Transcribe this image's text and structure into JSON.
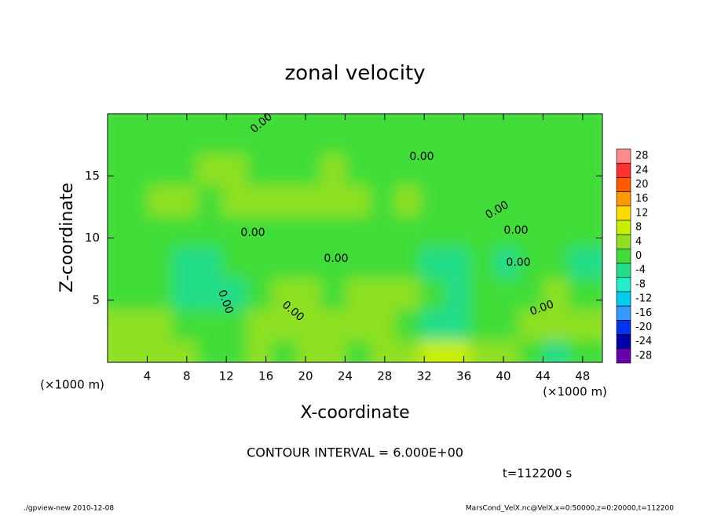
{
  "chart_data": {
    "type": "contour",
    "title": "zonal velocity",
    "xlabel": "X-coordinate",
    "ylabel": "Z-coordinate",
    "x_unit": "(×1000 m)",
    "x_unit_right": "(×1000 m)",
    "xlim": [
      0,
      50
    ],
    "ylim": [
      0,
      20
    ],
    "xticks": [
      4,
      8,
      12,
      16,
      20,
      24,
      28,
      32,
      36,
      40,
      44,
      48
    ],
    "yticks": [
      5,
      10,
      15
    ],
    "x_edges": [
      0,
      2.5,
      5,
      7.5,
      10,
      12.5,
      15,
      17.5,
      20,
      22.5,
      25,
      27.5,
      30,
      32.5,
      35,
      37.5,
      40,
      42.5,
      45,
      47.5,
      50
    ],
    "y_edges": [
      0,
      2.5,
      5,
      7.5,
      10,
      12.5,
      15,
      17.5,
      20
    ],
    "z": [
      [
        2,
        2,
        4,
        4,
        1,
        0,
        2,
        0,
        2,
        2,
        1,
        2,
        2,
        6,
        7,
        3,
        2,
        -2,
        -3,
        1
      ],
      [
        2,
        2,
        3,
        1,
        -2,
        -1,
        2,
        2,
        3,
        2,
        2,
        3,
        0,
        -5,
        -6,
        -2,
        1,
        3,
        5,
        4
      ],
      [
        -2,
        -1,
        -2,
        -3,
        -5,
        -3,
        0,
        3,
        5,
        1,
        2,
        5,
        2,
        -2,
        -3,
        -2,
        -2,
        1,
        2,
        1
      ],
      [
        -1,
        -2,
        -2,
        -3,
        -3,
        -2,
        -1,
        -1,
        -2,
        -1,
        -2,
        -1,
        -2,
        -3,
        -3,
        -2,
        -3,
        -2,
        -2,
        -3
      ],
      [
        0,
        0,
        1,
        1,
        1,
        1,
        0,
        1,
        1,
        1,
        0,
        0,
        1,
        1,
        1,
        0,
        1,
        0,
        1,
        0
      ],
      [
        1,
        1,
        2,
        2,
        1,
        2,
        2,
        2,
        2,
        2,
        2,
        1,
        2,
        1,
        1,
        1,
        1,
        1,
        1,
        1
      ],
      [
        1,
        1,
        1,
        1,
        2,
        2,
        1,
        1,
        1,
        2,
        1,
        1,
        1,
        1,
        1,
        1,
        1,
        1,
        1,
        1
      ],
      [
        1,
        1,
        1,
        1,
        1,
        1,
        1,
        1,
        1,
        1,
        1,
        1,
        1,
        1,
        1,
        1,
        1,
        1,
        1,
        1
      ]
    ],
    "colorbar": {
      "levels": [
        28,
        24,
        20,
        16,
        12,
        8,
        4,
        0,
        -4,
        -8,
        -12,
        -16,
        -20,
        -24,
        -28
      ],
      "colors": [
        "#ff8a8a",
        "#ff3030",
        "#ff5a00",
        "#ff9900",
        "#ffdd00",
        "#c8ee00",
        "#8ee020",
        "#40dd38",
        "#22dd88",
        "#22eecc",
        "#00ccee",
        "#3399ff",
        "#0033ee",
        "#0000aa",
        "#6600aa"
      ]
    },
    "contour_labels": [
      "0.00",
      "0.00",
      "0.00",
      "0.00",
      "0.00",
      "0.00",
      "0.00",
      "0.00",
      "0.00",
      "0.00"
    ],
    "contour_interval": "CONTOUR INTERVAL = 6.000E+00",
    "time_label": "t=112200 s",
    "footer_left": "./gpview-new  2010-12-08",
    "footer_right": "MarsCond_VelX.nc@VelX,x=0:50000,z=0:20000,t=112200"
  }
}
